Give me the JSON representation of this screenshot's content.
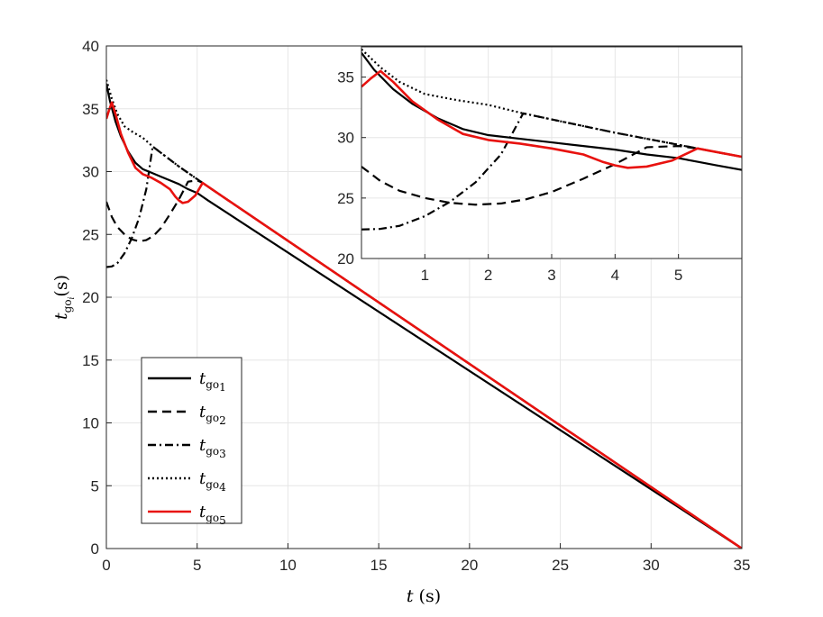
{
  "chart_data": [
    {
      "type": "line",
      "xlabel": "t (s)",
      "ylabel": "t_go_i(s)",
      "xlim": [
        0,
        35
      ],
      "ylim": [
        0,
        40
      ],
      "xticks": [
        "0",
        "5",
        "10",
        "15",
        "20",
        "25",
        "30",
        "35"
      ],
      "yticks": [
        "0",
        "5",
        "10",
        "15",
        "20",
        "25",
        "30",
        "35",
        "40"
      ],
      "grid": true,
      "legend_position": "bottom-left",
      "series": [
        {
          "name": "t_go1",
          "label": "t",
          "sub": "go1",
          "style": "solid",
          "color": "#000000",
          "points": [
            [
              0,
              37.0
            ],
            [
              0.2,
              35.6
            ],
            [
              0.5,
              34.0
            ],
            [
              0.8,
              32.8
            ],
            [
              1.2,
              31.6
            ],
            [
              1.6,
              30.7
            ],
            [
              2.0,
              30.2
            ],
            [
              2.5,
              29.9
            ],
            [
              3.0,
              29.6
            ],
            [
              3.5,
              29.3
            ],
            [
              4.0,
              29.0
            ],
            [
              4.5,
              28.6
            ],
            [
              5.0,
              28.3
            ],
            [
              5.3,
              28.0
            ],
            [
              5.6,
              27.7
            ],
            [
              35,
              0
            ]
          ]
        },
        {
          "name": "t_go2",
          "label": "t",
          "sub": "go2",
          "style": "dashed",
          "color": "#000000",
          "points": [
            [
              0,
              27.6
            ],
            [
              0.3,
              26.4
            ],
            [
              0.6,
              25.6
            ],
            [
              1.0,
              25.0
            ],
            [
              1.4,
              24.6
            ],
            [
              1.8,
              24.45
            ],
            [
              2.2,
              24.55
            ],
            [
              2.6,
              24.9
            ],
            [
              3.0,
              25.5
            ],
            [
              3.5,
              26.6
            ],
            [
              4.0,
              27.8
            ],
            [
              4.5,
              29.2
            ],
            [
              5.0,
              29.3
            ],
            [
              5.3,
              29.1
            ],
            [
              5.6,
              28.8
            ],
            [
              35,
              0
            ]
          ]
        },
        {
          "name": "t_go3",
          "label": "t",
          "sub": "go3",
          "style": "dashdot",
          "color": "#000000",
          "points": [
            [
              0,
              22.4
            ],
            [
              0.3,
              22.45
            ],
            [
              0.6,
              22.7
            ],
            [
              1.0,
              23.5
            ],
            [
              1.4,
              24.7
            ],
            [
              1.8,
              26.3
            ],
            [
              2.2,
              28.6
            ],
            [
              2.55,
              32.0
            ],
            [
              3.0,
              31.5
            ],
            [
              4.0,
              30.4
            ],
            [
              5.0,
              29.4
            ],
            [
              5.3,
              29.1
            ],
            [
              5.6,
              28.8
            ],
            [
              35,
              0
            ]
          ]
        },
        {
          "name": "t_go4",
          "label": "t",
          "sub": "go4",
          "style": "dotted",
          "color": "#000000",
          "points": [
            [
              0,
              37.3
            ],
            [
              0.3,
              35.8
            ],
            [
              0.6,
              34.6
            ],
            [
              1.0,
              33.6
            ],
            [
              1.5,
              33.1
            ],
            [
              2.0,
              32.7
            ],
            [
              2.55,
              32.0
            ],
            [
              3.0,
              31.5
            ],
            [
              4.0,
              30.4
            ],
            [
              5.0,
              29.4
            ],
            [
              5.3,
              29.1
            ],
            [
              5.6,
              28.8
            ],
            [
              35,
              0
            ]
          ]
        },
        {
          "name": "t_go5",
          "label": "t",
          "sub": "go5",
          "style": "solid",
          "color": "#e8120f",
          "points": [
            [
              0,
              34.2
            ],
            [
              0.15,
              34.9
            ],
            [
              0.3,
              35.5
            ],
            [
              0.5,
              34.6
            ],
            [
              0.8,
              33.0
            ],
            [
              1.2,
              31.5
            ],
            [
              1.6,
              30.3
            ],
            [
              2.0,
              29.8
            ],
            [
              2.5,
              29.5
            ],
            [
              3.0,
              29.1
            ],
            [
              3.5,
              28.6
            ],
            [
              3.8,
              28.0
            ],
            [
              4.0,
              27.7
            ],
            [
              4.2,
              27.5
            ],
            [
              4.5,
              27.6
            ],
            [
              4.9,
              28.1
            ],
            [
              5.3,
              29.1
            ],
            [
              5.6,
              28.8
            ],
            [
              35,
              0
            ]
          ]
        }
      ]
    },
    {
      "type": "line",
      "inset": true,
      "xlim": [
        0,
        6.0
      ],
      "ylim": [
        20,
        37.5
      ],
      "xticks": [
        "1",
        "2",
        "3",
        "4",
        "5"
      ],
      "yticks": [
        "20",
        "25",
        "30",
        "35"
      ],
      "grid": true,
      "series_ref": "same as main plot, zoomed view"
    }
  ]
}
